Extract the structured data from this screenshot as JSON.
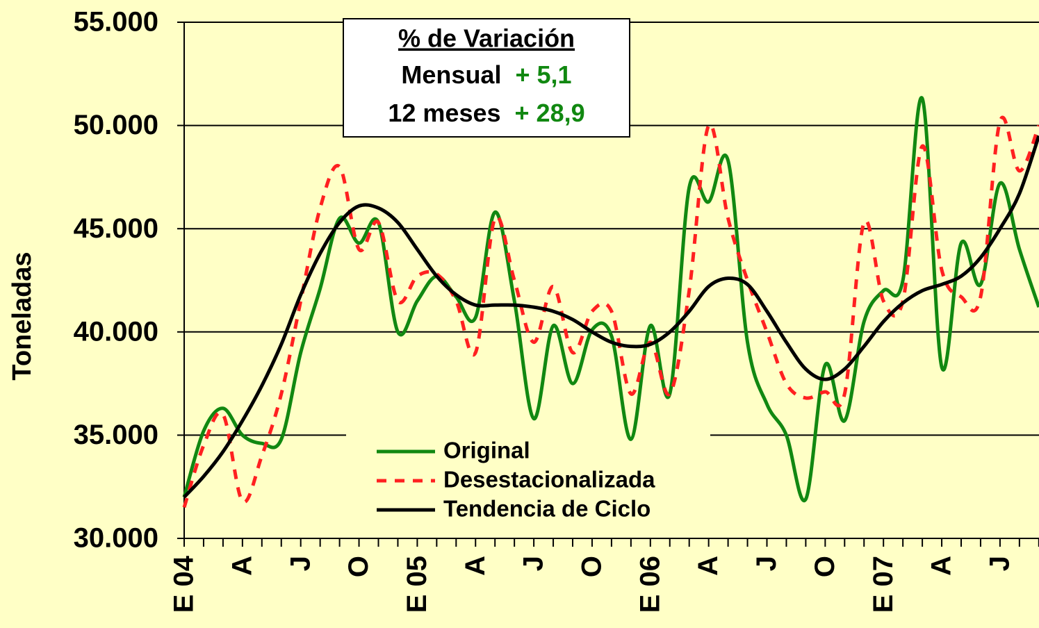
{
  "chart_data": {
    "type": "line",
    "y_label": "Toneladas",
    "categories": [
      "E 04",
      null,
      null,
      "A",
      null,
      null,
      "J",
      null,
      null,
      "O",
      null,
      null,
      "E 05",
      null,
      null,
      "A",
      null,
      null,
      "J",
      null,
      null,
      "O",
      null,
      null,
      "E 06",
      null,
      null,
      "A",
      null,
      null,
      "J",
      null,
      null,
      "O",
      null,
      null,
      "E 07",
      null,
      null,
      "A",
      null,
      null,
      "J",
      null,
      null
    ],
    "series": [
      {
        "name": "Original",
        "color": "#118811",
        "dash": "solid",
        "values": [
          32000,
          35200,
          36300,
          35000,
          34600,
          34800,
          39000,
          42100,
          45500,
          44300,
          45300,
          40000,
          41500,
          42700,
          41700,
          40700,
          45800,
          41500,
          35800,
          40300,
          37500,
          40100,
          39800,
          34800,
          40300,
          37000,
          47000,
          46300,
          48300,
          39500,
          36500,
          35000,
          31900,
          38400,
          35700,
          40500,
          42000,
          42500,
          51300,
          38300,
          44300,
          42300,
          47200,
          44000,
          41200
        ]
      },
      {
        "name": "Desestacionalizada",
        "color": "#ff2020",
        "dash": "dashed",
        "values": [
          31500,
          34500,
          36000,
          31800,
          34000,
          37000,
          41500,
          46000,
          48000,
          44000,
          45300,
          41500,
          42700,
          42800,
          41500,
          39000,
          45500,
          42500,
          39500,
          42200,
          39000,
          41000,
          41000,
          37000,
          39500,
          37000,
          42000,
          50000,
          45500,
          42500,
          40000,
          37500,
          36800,
          37100,
          37000,
          45300,
          41500,
          41500,
          49000,
          43000,
          41700,
          41700,
          50200,
          47800,
          50000
        ]
      },
      {
        "name": "Tendencia de Ciclo",
        "color": "#000000",
        "dash": "solid",
        "values": [
          32000,
          33000,
          34200,
          35700,
          37400,
          39400,
          41800,
          43800,
          45300,
          46100,
          46000,
          45300,
          44000,
          42700,
          41800,
          41300,
          41300,
          41300,
          41200,
          41000,
          40600,
          40000,
          39500,
          39300,
          39400,
          40000,
          41000,
          42200,
          42600,
          42300,
          41000,
          39500,
          38200,
          37700,
          38200,
          39300,
          40500,
          41400,
          42000,
          42300,
          42700,
          43600,
          45000,
          46700,
          49500
        ]
      }
    ],
    "ylim": [
      30000,
      55000
    ],
    "yticks": [
      {
        "value": 30000,
        "label": "30.000"
      },
      {
        "value": 35000,
        "label": "35.000"
      },
      {
        "value": 40000,
        "label": "40.000"
      },
      {
        "value": 45000,
        "label": "45.000"
      },
      {
        "value": 50000,
        "label": "50.000"
      },
      {
        "value": 55000,
        "label": "55.000"
      }
    ],
    "grid": true,
    "annotation": {
      "title": "% de Variación",
      "rows": [
        {
          "label": "Mensual",
          "value": "+ 5,1"
        },
        {
          "label": "12 meses",
          "value": "+ 28,9"
        }
      ]
    }
  }
}
